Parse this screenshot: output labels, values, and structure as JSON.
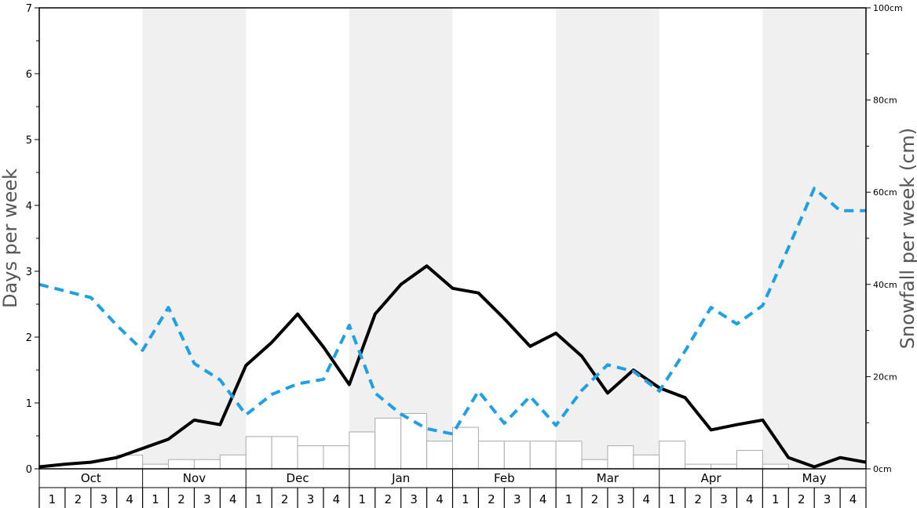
{
  "chart_data": {
    "type": "bar",
    "title": "",
    "ylabel_left": "Days per week",
    "ylabel_right": "Snowfall per week (cm)",
    "ylim_left": [
      0,
      7
    ],
    "ylim_right": [
      0,
      100
    ],
    "yticks_left": [
      "0",
      "1",
      "2",
      "3",
      "4",
      "5",
      "6",
      "7"
    ],
    "yticks_right": [
      "0cm",
      "20cm",
      "40cm",
      "60cm",
      "80cm",
      "100cm"
    ],
    "months": [
      "Oct",
      "Nov",
      "Dec",
      "Jan",
      "Feb",
      "Mar",
      "Apr",
      "May"
    ],
    "week_labels": [
      "1",
      "2",
      "3",
      "4",
      "1",
      "2",
      "3",
      "4",
      "1",
      "2",
      "3",
      "4",
      "1",
      "2",
      "3",
      "4",
      "1",
      "2",
      "3",
      "4",
      "1",
      "2",
      "3",
      "4",
      "1",
      "2",
      "3",
      "4",
      "1",
      "2",
      "3",
      "4"
    ],
    "shaded_months": [
      "Nov",
      "Jan",
      "Mar",
      "May"
    ],
    "snowfall_bars_cm": [
      0,
      0,
      0,
      3,
      1,
      2,
      2,
      3,
      7,
      7,
      5,
      5,
      8,
      11,
      12,
      6,
      9,
      6,
      6,
      6,
      6,
      2,
      5,
      3,
      6,
      1,
      1,
      4,
      1,
      0,
      0,
      0
    ],
    "series": [
      {
        "name": "",
        "style": "solid",
        "color": "#000000",
        "axis": "left",
        "values": [
          0.03,
          0.07,
          0.1,
          0.17,
          0.31,
          0.45,
          0.74,
          0.67,
          1.57,
          1.92,
          2.35,
          1.85,
          1.28,
          2.35,
          2.8,
          3.08,
          2.74,
          2.67,
          2.28,
          1.86,
          2.06,
          1.71,
          1.15,
          1.5,
          1.23,
          1.08,
          0.59,
          0.67,
          0.74,
          0.17,
          0.03,
          0.17,
          0.1
        ]
      },
      {
        "name": "",
        "style": "dashed",
        "color": "#1ea0e6",
        "axis": "left",
        "values": [
          2.8,
          2.7,
          2.6,
          2.18,
          1.8,
          2.45,
          1.6,
          1.35,
          0.82,
          1.13,
          1.29,
          1.36,
          2.18,
          1.15,
          0.83,
          0.61,
          0.53,
          1.18,
          0.69,
          1.1,
          0.66,
          1.19,
          1.58,
          1.48,
          1.18,
          1.79,
          2.45,
          2.2,
          2.48,
          3.36,
          4.26,
          3.92,
          3.92
        ]
      }
    ]
  }
}
